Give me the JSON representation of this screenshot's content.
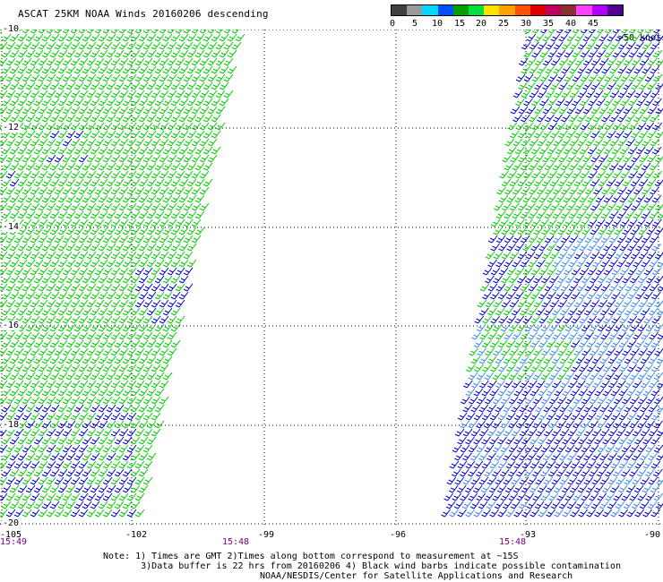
{
  "title": "ASCAT 25KM NOAA Winds 20160206 descending",
  "legend": {
    "labels": [
      "0",
      "5",
      "10",
      "15",
      "20",
      "25",
      "30",
      "35",
      "40",
      "45",
      ">50 knots"
    ],
    "colors": [
      "#404040",
      "#9a9a9a",
      "#00d8ff",
      "#0050ff",
      "#00a000",
      "#00e040",
      "#ffe000",
      "#ffa000",
      "#ff5000",
      "#e00000",
      "#c00060",
      "#8a3030",
      "#ff40ff",
      "#b000ff",
      "#500090"
    ]
  },
  "map": {
    "lat_labels": [
      "-10",
      "-12",
      "-14",
      "-16",
      "-18",
      "-20"
    ],
    "lon_labels": [
      "-105",
      "-102",
      "-99",
      "-96",
      "-93",
      "-90"
    ],
    "time_labels": [
      "15:49",
      "15:48",
      "15:48"
    ],
    "barb_colors": {
      "green": "#00cc00",
      "blue": "#0000cc",
      "lightblue": "#3a8ae8"
    }
  },
  "notes": {
    "line1": "Note: 1) Times are GMT 2)Times along bottom correspond to measurement at ~15S",
    "line2": "       3)Data buffer is 22 hrs from 20160206 4) Black wind barbs indicate possible contamination"
  },
  "credit": "NOAA/NESDIS/Center for Satellite Applications and Research"
}
